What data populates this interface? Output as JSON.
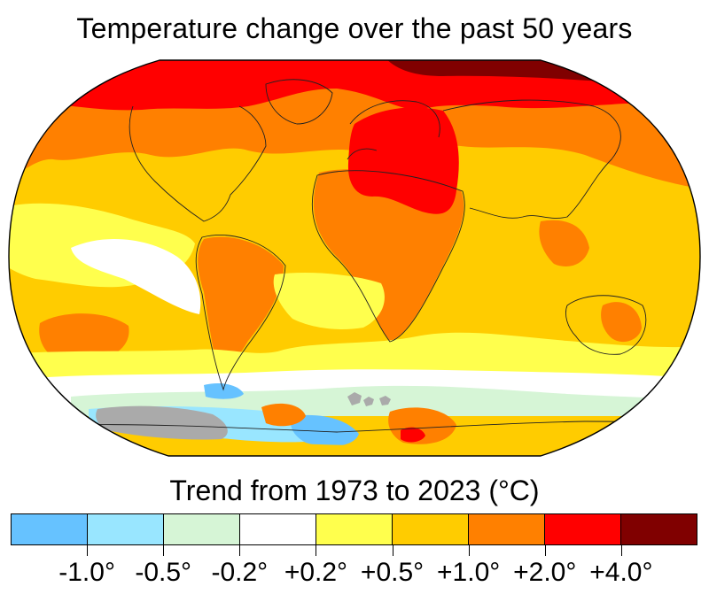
{
  "title": "Temperature change over the past 50 years",
  "legend": {
    "title": "Trend from 1973 to 2023 (°C)",
    "bins": [
      {
        "color": "#66c2ff"
      },
      {
        "color": "#99e6ff"
      },
      {
        "color": "#d6f5d6"
      },
      {
        "color": "#ffffff"
      },
      {
        "color": "#ffff4d"
      },
      {
        "color": "#ffcc00"
      },
      {
        "color": "#ff8000"
      },
      {
        "color": "#ff0000"
      },
      {
        "color": "#800000"
      }
    ],
    "labels": [
      "-1.0°",
      "-0.5°",
      "-0.2°",
      "+0.2°",
      "+0.5°",
      "+1.0°",
      "+2.0°",
      "+4.0°"
    ]
  },
  "map": {
    "projection": "robinson-like",
    "no_data_color": "#aaaaaa"
  }
}
